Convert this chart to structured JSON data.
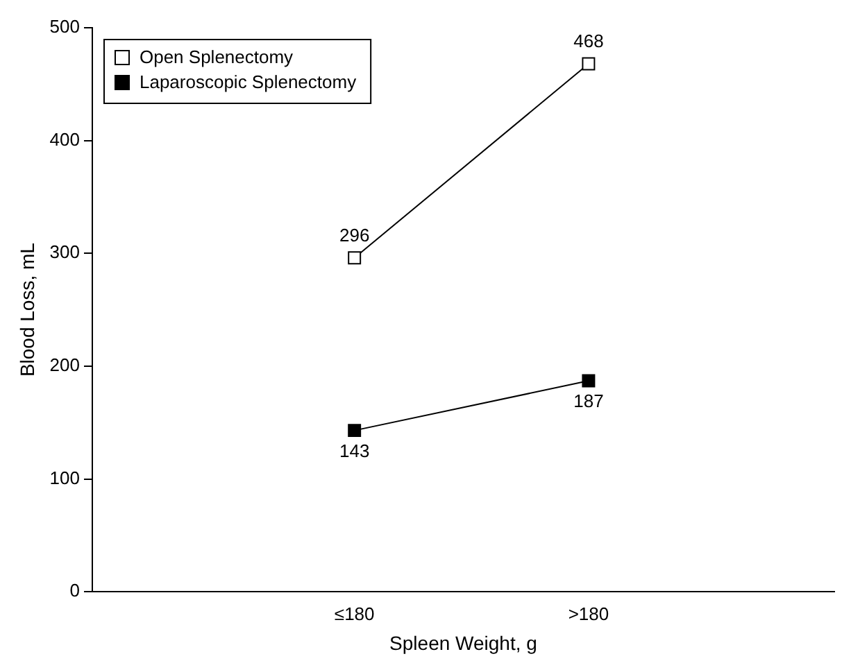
{
  "chart_data": {
    "type": "line",
    "xlabel": "Spleen Weight, g",
    "ylabel": "Blood Loss, mL",
    "categories": [
      "≤180",
      ">180"
    ],
    "series": [
      {
        "name": "Open Splenectomy",
        "color": "#ffffff",
        "values": [
          296,
          468
        ]
      },
      {
        "name": "Laparoscopic Splenectomy",
        "color": "#000000",
        "values": [
          143,
          187
        ]
      }
    ],
    "ylim": [
      0,
      500
    ],
    "yticks": [
      0,
      100,
      200,
      300,
      400,
      500
    ],
    "grid": false,
    "legend": "top left",
    "marker": "square",
    "line_style": "solid",
    "data_labels": true
  }
}
